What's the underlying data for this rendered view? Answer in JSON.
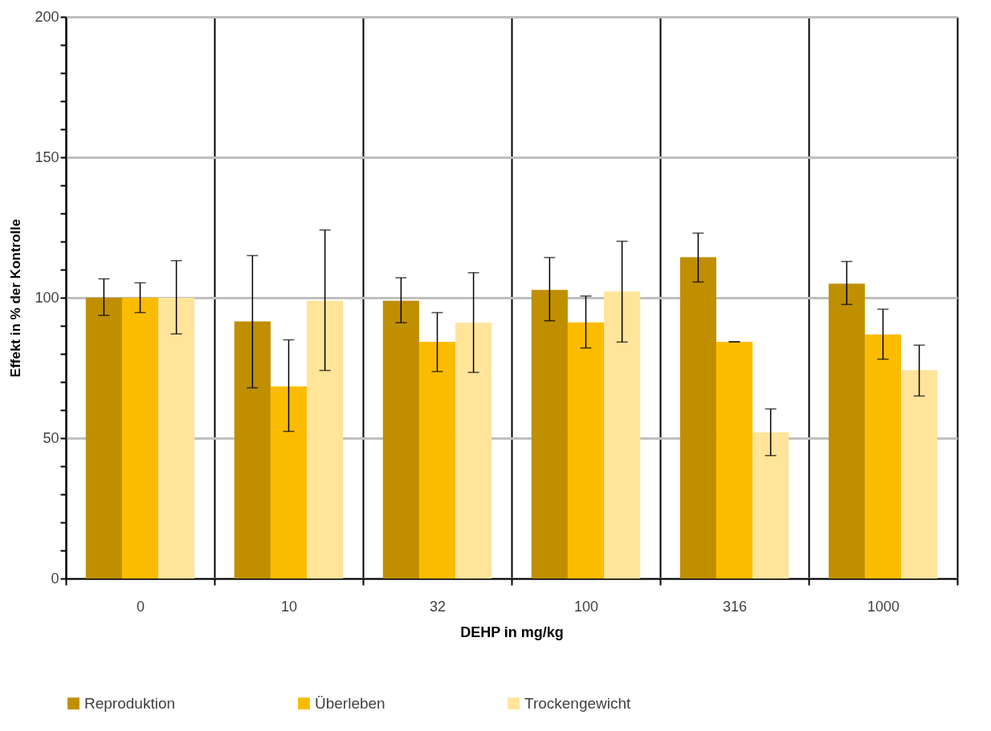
{
  "chart_data": {
    "type": "bar",
    "xlabel": "DEHP in mg/kg",
    "ylabel": "Effekt in % der Kontrolle",
    "categories": [
      "0",
      "10",
      "32",
      "100",
      "316",
      "1000"
    ],
    "series": [
      {
        "name": "Reproduktion",
        "color": "#bf8f00",
        "values": [
          100,
          91.6,
          98.9,
          102.8,
          114.4,
          105.0
        ],
        "errors": [
          [
            93.7,
            106.7
          ],
          [
            67.9,
            115.0
          ],
          [
            91.1,
            107.1
          ],
          [
            91.8,
            114.3
          ],
          [
            105.6,
            123.0
          ],
          [
            97.6,
            112.9
          ]
        ]
      },
      {
        "name": "Überleben",
        "color": "#fbbc00",
        "values": [
          100,
          68.4,
          84.3,
          91.2,
          84.3,
          86.9
        ],
        "errors": [
          [
            94.7,
            105.3
          ],
          [
            52.4,
            85.0
          ],
          [
            73.7,
            94.7
          ],
          [
            82.1,
            100.6
          ],
          [
            84.3,
            84.3
          ],
          [
            78.1,
            95.9
          ]
        ]
      },
      {
        "name": "Trockengewicht",
        "color": "#ffe49a",
        "values": [
          100,
          98.9,
          91.1,
          102.2,
          52.1,
          74.2
        ],
        "errors": [
          [
            87.1,
            113.2
          ],
          [
            74.1,
            124.1
          ],
          [
            73.4,
            108.9
          ],
          [
            84.2,
            120.1
          ],
          [
            43.8,
            60.4
          ],
          [
            65.0,
            83.1
          ]
        ]
      }
    ],
    "ylim": [
      0,
      200
    ],
    "yticks": [
      0,
      {
        "value": 10,
        "label": null
      },
      {
        "value": 20,
        "label": null
      },
      {
        "value": 30,
        "label": null
      },
      {
        "value": 40,
        "label": null
      },
      50,
      {
        "value": 60,
        "label": null
      },
      {
        "value": 70,
        "label": null
      },
      {
        "value": 80,
        "label": null
      },
      {
        "value": 90,
        "label": null
      },
      100,
      {
        "value": 110,
        "label": null
      },
      {
        "value": 120,
        "label": null
      },
      {
        "value": 130,
        "label": null
      },
      {
        "value": 140,
        "label": null
      },
      150,
      {
        "value": 160,
        "label": null
      },
      {
        "value": 170,
        "label": null
      },
      {
        "value": 180,
        "label": null
      },
      {
        "value": 190,
        "label": null
      },
      200
    ],
    "grid": true,
    "legend": "bottom"
  }
}
